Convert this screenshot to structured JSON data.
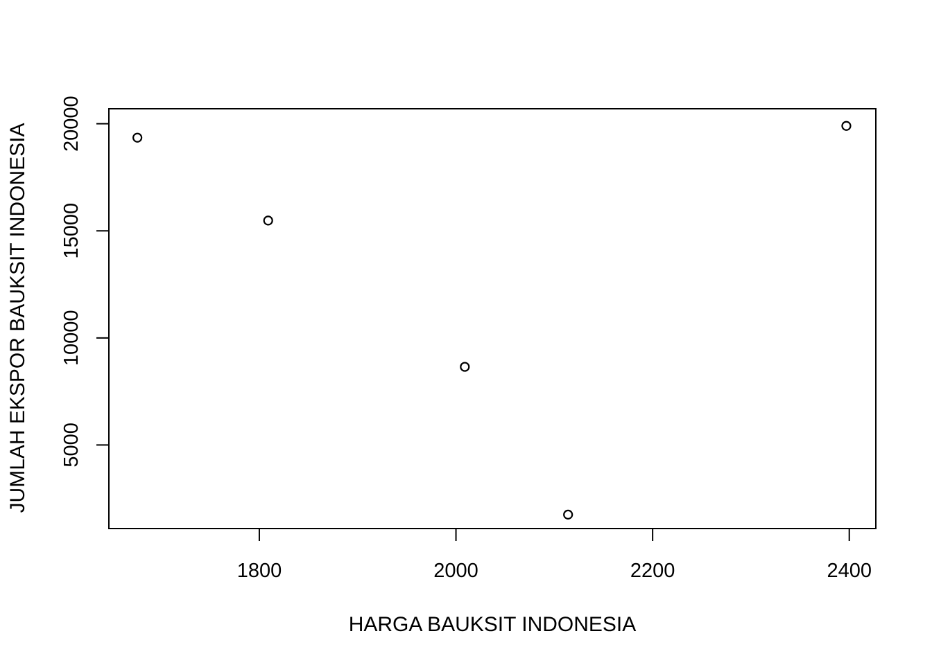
{
  "chart_data": {
    "type": "scatter",
    "title": "",
    "xlabel": "HARGA BAUKSIT INDONESIA",
    "ylabel": "JUMLAH EKSPOR BAUKSIT INDONESIA",
    "xlim": [
      1647,
      2427
    ],
    "ylim": [
      1100,
      20700
    ],
    "xticks": [
      1800,
      2000,
      2200,
      2400
    ],
    "yticks": [
      5000,
      10000,
      15000,
      20000
    ],
    "xtick_labels": [
      "1800",
      "2000",
      "2200",
      "2400"
    ],
    "ytick_labels": [
      "5000",
      "10000",
      "15000",
      "20000"
    ],
    "grid": false,
    "marker": "open-circle",
    "point_color": "#000000",
    "points": [
      {
        "x": 1676,
        "y": 19350
      },
      {
        "x": 1809,
        "y": 15480
      },
      {
        "x": 2009,
        "y": 8650
      },
      {
        "x": 2114,
        "y": 1750
      },
      {
        "x": 2397,
        "y": 19900
      }
    ]
  }
}
